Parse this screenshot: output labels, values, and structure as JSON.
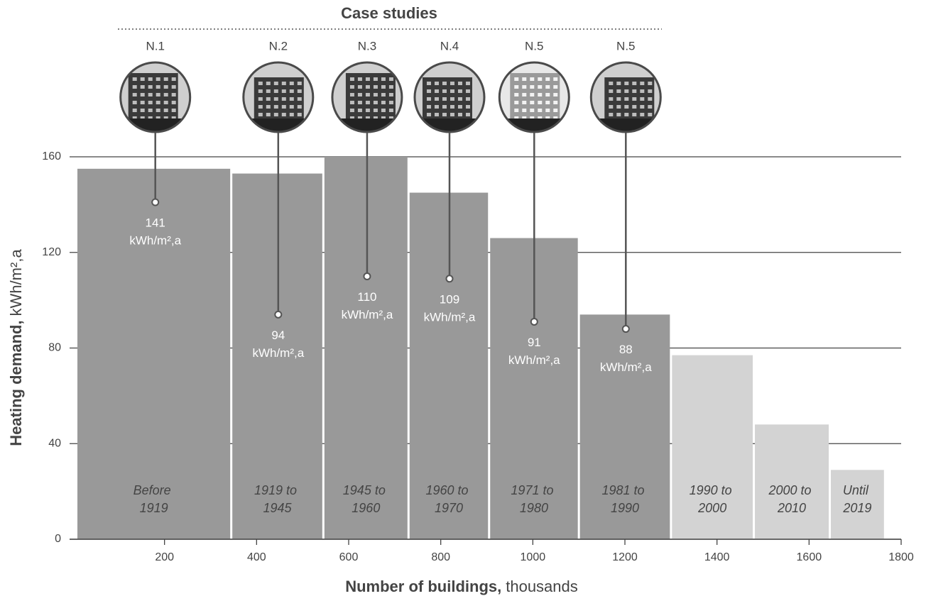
{
  "chart_data": {
    "type": "variable-width-bar",
    "categories": [
      "Before 1919",
      "1919 to 1945",
      "1945 to 1960",
      "1960 to 1970",
      "1971 to 1980",
      "1981 to 1990",
      "1990 to 2000",
      "2000 to 2010",
      "Until 2019"
    ],
    "bins": [
      0,
      345,
      545,
      730,
      905,
      1100,
      1300,
      1480,
      1645,
      1765
    ],
    "values": [
      155,
      153,
      160,
      145,
      126,
      94,
      77,
      48,
      29
    ],
    "colors": [
      "#999999",
      "#999999",
      "#999999",
      "#999999",
      "#999999",
      "#999999",
      "#d3d3d3",
      "#d3d3d3",
      "#d3d3d3"
    ],
    "label_colors": [
      "#ffffff",
      "#ffffff",
      "#ffffff",
      "#ffffff",
      "#ffffff",
      "#ffffff",
      "#8a8a8a",
      "#8a8a8a",
      "#8a8a8a"
    ],
    "xlim": [
      0,
      1800
    ],
    "xticks": [
      200,
      400,
      600,
      800,
      1000,
      1200,
      1400,
      1600,
      1800
    ],
    "ylim": [
      0,
      160
    ],
    "yticks": [
      0,
      40,
      80,
      120,
      160
    ],
    "grid": true,
    "x_label": {
      "bold": "Number of buildings,",
      "regular": "thousands"
    },
    "y_label": {
      "bold": "Heating demand,",
      "regular": "kWh/m²,a"
    },
    "case_studies": {
      "title": "Case studies",
      "unit": "kWh/m²,a",
      "labels": [
        "N.1",
        "N.2",
        "N.3",
        "N.4",
        "N.5",
        "N.5"
      ],
      "x": [
        180,
        447,
        640,
        819,
        1003,
        1202
      ],
      "values": [
        141,
        94,
        110,
        109,
        91,
        88
      ]
    }
  }
}
